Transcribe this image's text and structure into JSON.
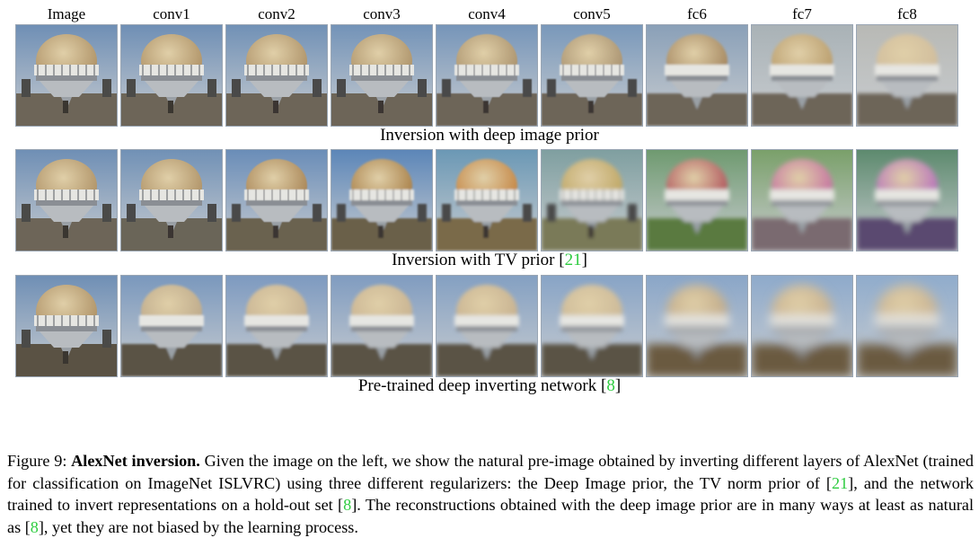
{
  "columns": [
    "Image",
    "conv1",
    "conv2",
    "conv3",
    "conv4",
    "conv5",
    "fc6",
    "fc7",
    "fc8"
  ],
  "rows": [
    {
      "caption_text": "Inversion with deep image prior",
      "caption_ref": ""
    },
    {
      "caption_text": "Inversion with TV prior [",
      "caption_ref": "21",
      "caption_close": "]"
    },
    {
      "caption_text": "Pre-trained deep inverting network [",
      "caption_ref": "8",
      "caption_close": "]"
    }
  ],
  "caption": {
    "label": "Figure 9: ",
    "title": "AlexNet inversion.",
    "part1": " Given the image on the left, we show the natural pre-image obtained by inverting different layers of AlexNet (trained for classification on ImageNet ISLVRC) using three different regularizers: the Deep Image prior, the TV norm prior of [",
    "ref1": "21",
    "part2": "], and the network trained to invert representations on a hold-out set [",
    "ref2": "8",
    "part3": "]. The reconstructions obtained with the deep image prior are in many ways at least as natural as [",
    "ref3": "8",
    "part4": "], yet they are not biased by the learning process."
  },
  "colors": {
    "citation": "#2ecc40",
    "sky": "#6f8fb5",
    "dome": "#a88a5e",
    "ground": "#6d6558"
  }
}
